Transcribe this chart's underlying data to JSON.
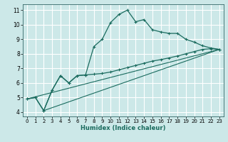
{
  "xlabel": "Humidex (Indice chaleur)",
  "bg_color": "#cce8e8",
  "grid_color": "#ffffff",
  "line_color": "#1a6b5e",
  "xlim": [
    -0.5,
    23.5
  ],
  "ylim": [
    3.7,
    11.4
  ],
  "xticks": [
    0,
    1,
    2,
    3,
    4,
    5,
    6,
    7,
    8,
    9,
    10,
    11,
    12,
    13,
    14,
    15,
    16,
    17,
    18,
    19,
    20,
    21,
    22,
    23
  ],
  "yticks": [
    4,
    5,
    6,
    7,
    8,
    9,
    10,
    11
  ],
  "series1_x": [
    0,
    1,
    2,
    3,
    4,
    5,
    6,
    7,
    8,
    9,
    10,
    11,
    12,
    13,
    14,
    15,
    16,
    17,
    18,
    19,
    20,
    21,
    22,
    23
  ],
  "series1_y": [
    4.9,
    5.0,
    4.1,
    5.5,
    6.5,
    6.0,
    6.5,
    6.55,
    8.5,
    9.0,
    10.15,
    10.7,
    11.0,
    10.2,
    10.35,
    9.65,
    9.5,
    9.4,
    9.4,
    9.0,
    8.8,
    8.55,
    8.4,
    8.3
  ],
  "series2_x": [
    0,
    1,
    2,
    3,
    4,
    5,
    6,
    7,
    8,
    9,
    10,
    11,
    12,
    13,
    14,
    15,
    16,
    17,
    18,
    19,
    20,
    21,
    22,
    23
  ],
  "series2_y": [
    4.9,
    5.0,
    4.1,
    5.5,
    6.5,
    6.0,
    6.5,
    6.55,
    6.6,
    6.65,
    6.75,
    6.9,
    7.05,
    7.2,
    7.35,
    7.5,
    7.6,
    7.72,
    7.85,
    8.0,
    8.15,
    8.3,
    8.35,
    8.3
  ],
  "series3_x": [
    0,
    23
  ],
  "series3_y": [
    4.9,
    8.3
  ],
  "series4_x": [
    2,
    23
  ],
  "series4_y": [
    4.1,
    8.3
  ]
}
